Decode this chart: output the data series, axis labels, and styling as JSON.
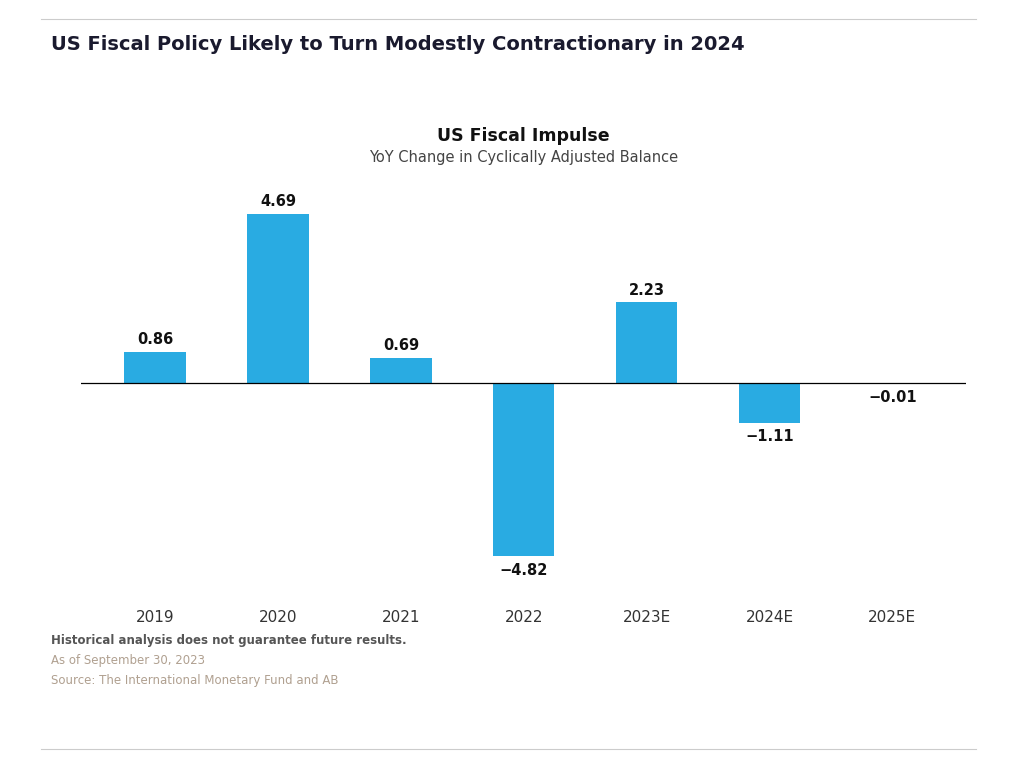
{
  "title": "US Fiscal Policy Likely to Turn Modestly Contractionary in 2024",
  "chart_title": "US Fiscal Impulse",
  "chart_subtitle": "YoY Change in Cyclically Adjusted Balance",
  "categories": [
    "2019",
    "2020",
    "2021",
    "2022",
    "2023E",
    "2024E",
    "2025E"
  ],
  "values": [
    0.86,
    4.69,
    0.69,
    -4.82,
    2.23,
    -1.11,
    -0.01
  ],
  "bar_color": "#29ABE2",
  "bar_width": 0.5,
  "ylim": [
    -6.0,
    5.5
  ],
  "footnote_bold": "Historical analysis does not guarantee future results.",
  "footnote_date": "As of September 30, 2023",
  "footnote_source": "Source: The International Monetary Fund and AB",
  "background_color": "#ffffff",
  "title_fontsize": 14,
  "chart_title_fontsize": 12.5,
  "chart_subtitle_fontsize": 10.5,
  "label_fontsize": 10.5,
  "tick_fontsize": 11,
  "footnote_bold_fontsize": 8.5,
  "footnote_fontsize": 8.5,
  "title_color": "#1a1a2e",
  "chart_title_color": "#111111",
  "chart_subtitle_color": "#444444",
  "tick_color": "#333333",
  "label_color": "#111111",
  "footnote_bold_color": "#555555",
  "footnote_color": "#b0a090",
  "border_color": "#cccccc"
}
